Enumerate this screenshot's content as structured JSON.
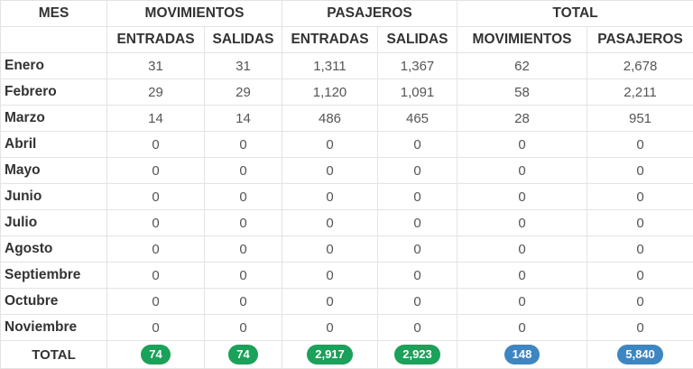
{
  "headers": {
    "mes": "MES",
    "group_movimientos": "MOVIMIENTOS",
    "group_pasajeros": "PASAJEROS",
    "group_total": "TOTAL",
    "sub": [
      "ENTRADAS",
      "SALIDAS",
      "ENTRADAS",
      "SALIDAS",
      "MOVIMIENTOS",
      "PASAJEROS"
    ]
  },
  "rows": [
    {
      "month": "Enero",
      "values": [
        "31",
        "31",
        "1,311",
        "1,367",
        "62",
        "2,678"
      ]
    },
    {
      "month": "Febrero",
      "values": [
        "29",
        "29",
        "1,120",
        "1,091",
        "58",
        "2,211"
      ]
    },
    {
      "month": "Marzo",
      "values": [
        "14",
        "14",
        "486",
        "465",
        "28",
        "951"
      ]
    },
    {
      "month": "Abril",
      "values": [
        "0",
        "0",
        "0",
        "0",
        "0",
        "0"
      ]
    },
    {
      "month": "Mayo",
      "values": [
        "0",
        "0",
        "0",
        "0",
        "0",
        "0"
      ]
    },
    {
      "month": "Junio",
      "values": [
        "0",
        "0",
        "0",
        "0",
        "0",
        "0"
      ]
    },
    {
      "month": "Julio",
      "values": [
        "0",
        "0",
        "0",
        "0",
        "0",
        "0"
      ]
    },
    {
      "month": "Agosto",
      "values": [
        "0",
        "0",
        "0",
        "0",
        "0",
        "0"
      ]
    },
    {
      "month": "Septiembre",
      "values": [
        "0",
        "0",
        "0",
        "0",
        "0",
        "0"
      ]
    },
    {
      "month": "Octubre",
      "values": [
        "0",
        "0",
        "0",
        "0",
        "0",
        "0"
      ]
    },
    {
      "month": "Noviembre",
      "values": [
        "0",
        "0",
        "0",
        "0",
        "0",
        "0"
      ]
    }
  ],
  "total": {
    "label": "TOTAL",
    "values": [
      "74",
      "74",
      "2,917",
      "2,923",
      "148",
      "5,840"
    ]
  },
  "colors": {
    "badge_green": "#1aa15a",
    "badge_blue": "#3e86c2"
  }
}
